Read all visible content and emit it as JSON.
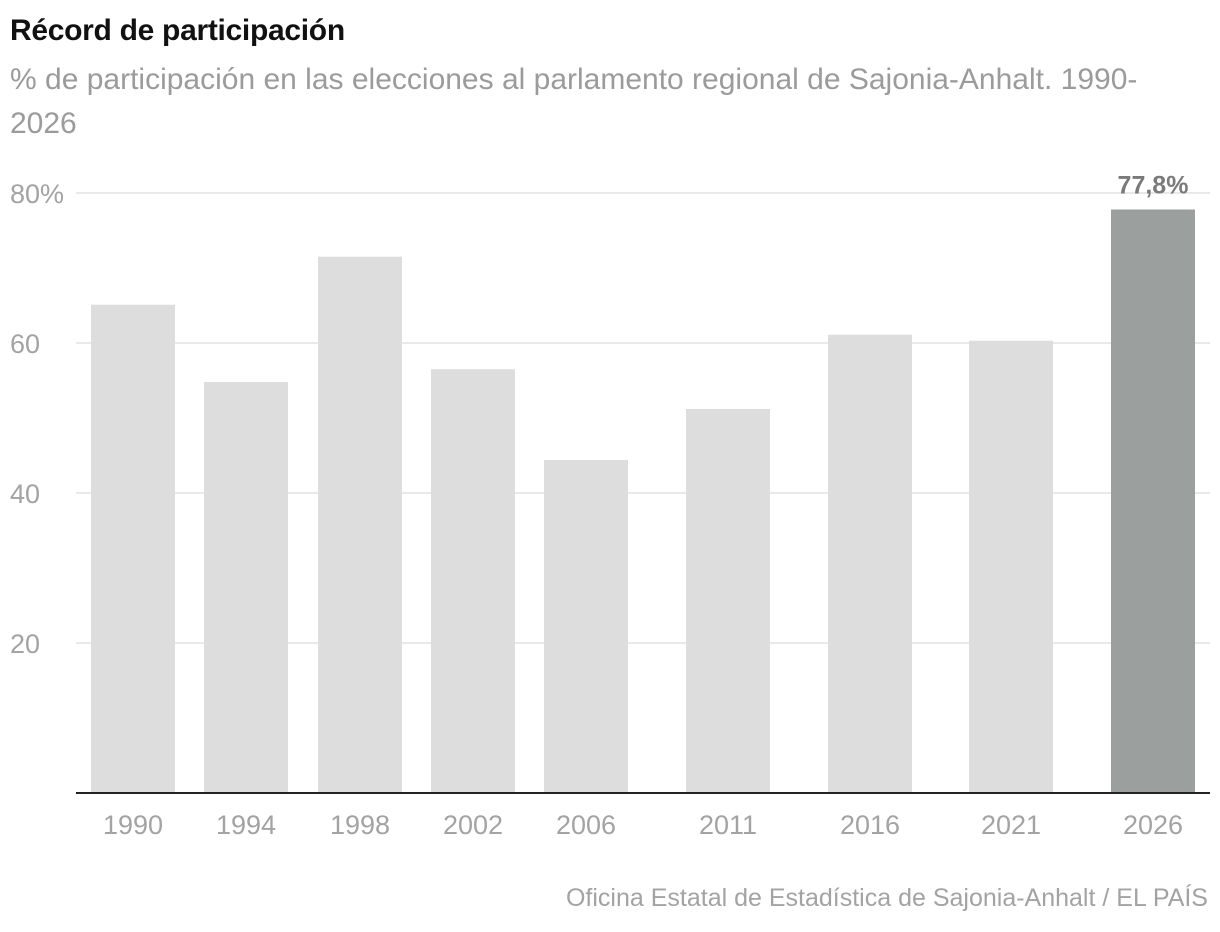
{
  "title": "Récord de participación",
  "subtitle": "% de participación en las elecciones al parlamento regional de Sajonia-Anhalt. 1990-2026",
  "source": "Oficina Estatal de Estadística de Sajonia-Anhalt / EL PAÍS",
  "colors": {
    "bar": "#dcdddc",
    "highlight": "#9ba09e",
    "grid": "#e2e2e2",
    "axis": "#222222",
    "tick_text": "#a3a3a3",
    "label_text": "#7a7a7a"
  },
  "chart_data": {
    "type": "bar",
    "categories": [
      "1990",
      "1994",
      "1998",
      "2002",
      "2006",
      "2011",
      "2016",
      "2021",
      "2026"
    ],
    "values": [
      65.1,
      54.8,
      71.5,
      56.5,
      44.4,
      51.2,
      61.1,
      60.3,
      77.8
    ],
    "highlight_index": 8,
    "data_labels": [
      {
        "index": 8,
        "text": "77,8%"
      }
    ],
    "yticks": [
      {
        "value": 20,
        "label": "20"
      },
      {
        "value": 40,
        "label": "40"
      },
      {
        "value": 60,
        "label": "60"
      },
      {
        "value": 80,
        "label": "80%"
      }
    ],
    "ylim": [
      0,
      80
    ],
    "grid": true,
    "xlabel": "",
    "ylabel": ""
  }
}
